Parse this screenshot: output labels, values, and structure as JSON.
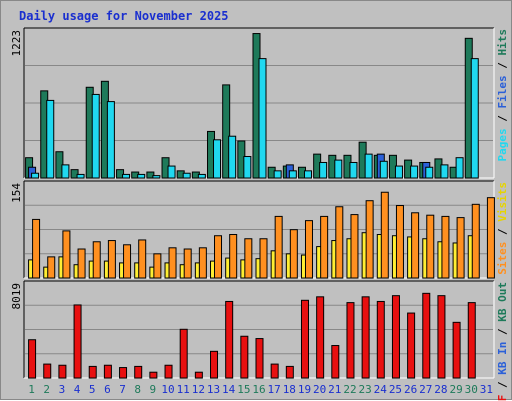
{
  "chart_data": {
    "type": "bar",
    "title": "Daily usage for November 2025",
    "categories": [
      "1",
      "2",
      "3",
      "4",
      "5",
      "6",
      "7",
      "8",
      "9",
      "10",
      "11",
      "12",
      "13",
      "14",
      "15",
      "16",
      "17",
      "18",
      "19",
      "20",
      "21",
      "22",
      "23",
      "24",
      "25",
      "26",
      "27",
      "28",
      "29",
      "30",
      "31"
    ],
    "weekend_days": [
      "1",
      "2",
      "8",
      "9",
      "15",
      "16",
      "22",
      "23",
      "29",
      "30"
    ],
    "panels": [
      {
        "id": "hits",
        "ymax_label": "1223",
        "ylim": [
          0,
          1223
        ],
        "series": [
          {
            "name": "Hits",
            "color": "#1e7a5a",
            "values": [
              170,
              730,
              220,
              70,
              760,
              810,
              70,
              50,
              50,
              170,
              60,
              50,
              390,
              780,
              310,
              1210,
              90,
              100,
              90,
              200,
              190,
              190,
              300,
              190,
              190,
              150,
              130,
              160,
              90,
              1170,
              0
            ]
          },
          {
            "name": "Pages",
            "color": "#2b60d8",
            "values": [
              90,
              0,
              0,
              0,
              0,
              0,
              0,
              0,
              0,
              0,
              0,
              0,
              0,
              0,
              0,
              0,
              0,
              110,
              0,
              0,
              0,
              0,
              0,
              200,
              0,
              0,
              130,
              0,
              0,
              0,
              0
            ]
          },
          {
            "name": "Files",
            "color": "#20d8f0",
            "values": [
              40,
              650,
              110,
              30,
              700,
              640,
              30,
              30,
              20,
              100,
              40,
              30,
              320,
              350,
              180,
              1000,
              60,
              60,
              60,
              130,
              150,
              130,
              200,
              140,
              100,
              100,
              90,
              110,
              170,
              1000,
              0
            ]
          }
        ]
      },
      {
        "id": "visits",
        "ymax_label": "154",
        "ylim": [
          0,
          154
        ],
        "series": [
          {
            "name": "Visits",
            "color": "#ffee33",
            "values": [
              30,
              18,
              35,
              22,
              28,
              28,
              25,
              25,
              18,
              25,
              22,
              25,
              28,
              33,
              30,
              32,
              45,
              40,
              38,
              52,
              62,
              65,
              75,
              72,
              70,
              68,
              65,
              60,
              58,
              70,
              0
            ]
          },
          {
            "name": "Sites",
            "color": "#ff9020",
            "values": [
              97,
              35,
              78,
              48,
              60,
              62,
              55,
              63,
              40,
              50,
              48,
              50,
              70,
              72,
              65,
              65,
              102,
              80,
              95,
              102,
              118,
              105,
              128,
              142,
              120,
              108,
              104,
              102,
              100,
              122,
              133
            ]
          }
        ]
      },
      {
        "id": "kbytes",
        "ymax_label": "8019",
        "ylim": [
          0,
          8019
        ],
        "series": [
          {
            "name": "KB F",
            "color": "#e81010",
            "values": [
              3300,
              1200,
              1100,
              6300,
              1000,
              1100,
              900,
              1000,
              500,
              1100,
              4200,
              500,
              2300,
              6600,
              3600,
              3400,
              1200,
              1000,
              6700,
              7000,
              2800,
              6500,
              7000,
              6600,
              7100,
              5600,
              7300,
              7100,
              4800,
              6500,
              0
            ]
          }
        ]
      }
    ],
    "side_labels": [
      {
        "panel": "hits",
        "parts": [
          {
            "text": "Pages",
            "color": "#20d8f0"
          },
          {
            "text": " / ",
            "color": "#000000"
          },
          {
            "text": "Files",
            "color": "#2b60d8"
          },
          {
            "text": " / ",
            "color": "#000000"
          },
          {
            "text": "Hits",
            "color": "#1e7a5a"
          }
        ]
      },
      {
        "panel": "visits",
        "parts": [
          {
            "text": "Sites",
            "color": "#ff9020"
          },
          {
            "text": " / ",
            "color": "#000000"
          },
          {
            "text": "Visits",
            "color": "#e6d400"
          }
        ]
      },
      {
        "panel": "kbytes",
        "parts": [
          {
            "text": "KB F",
            "color": "#e81010"
          },
          {
            "text": " / ",
            "color": "#000000"
          },
          {
            "text": "KB In",
            "color": "#2b60d8"
          },
          {
            "text": " / ",
            "color": "#000000"
          },
          {
            "text": "KB Out",
            "color": "#1e7a5a"
          }
        ]
      }
    ],
    "colors": {
      "weekday": "#1a2fcf",
      "weekend": "#1e7a5a",
      "grid": "#888888",
      "panel_bg": "#c0c0c0"
    }
  }
}
